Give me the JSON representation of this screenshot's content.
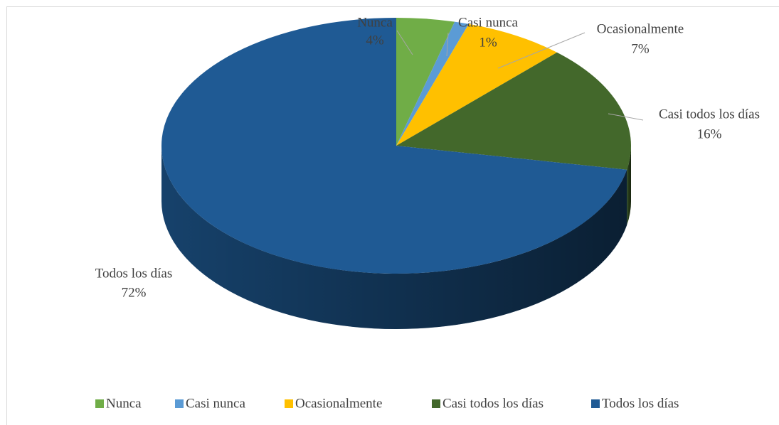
{
  "chart_data": {
    "type": "pie",
    "categories": [
      "Nunca",
      "Casi nunca",
      "Ocasionalmente",
      "Casi todos los días",
      "Todos los días"
    ],
    "values": [
      4,
      1,
      7,
      16,
      72
    ],
    "value_labels": [
      "4%",
      "1%",
      "7%",
      "16%",
      "72%"
    ],
    "colors": [
      "#70ad47",
      "#5b9bd5",
      "#ffc000",
      "#43682b",
      "#1f5a94"
    ],
    "legend": "bottom"
  }
}
